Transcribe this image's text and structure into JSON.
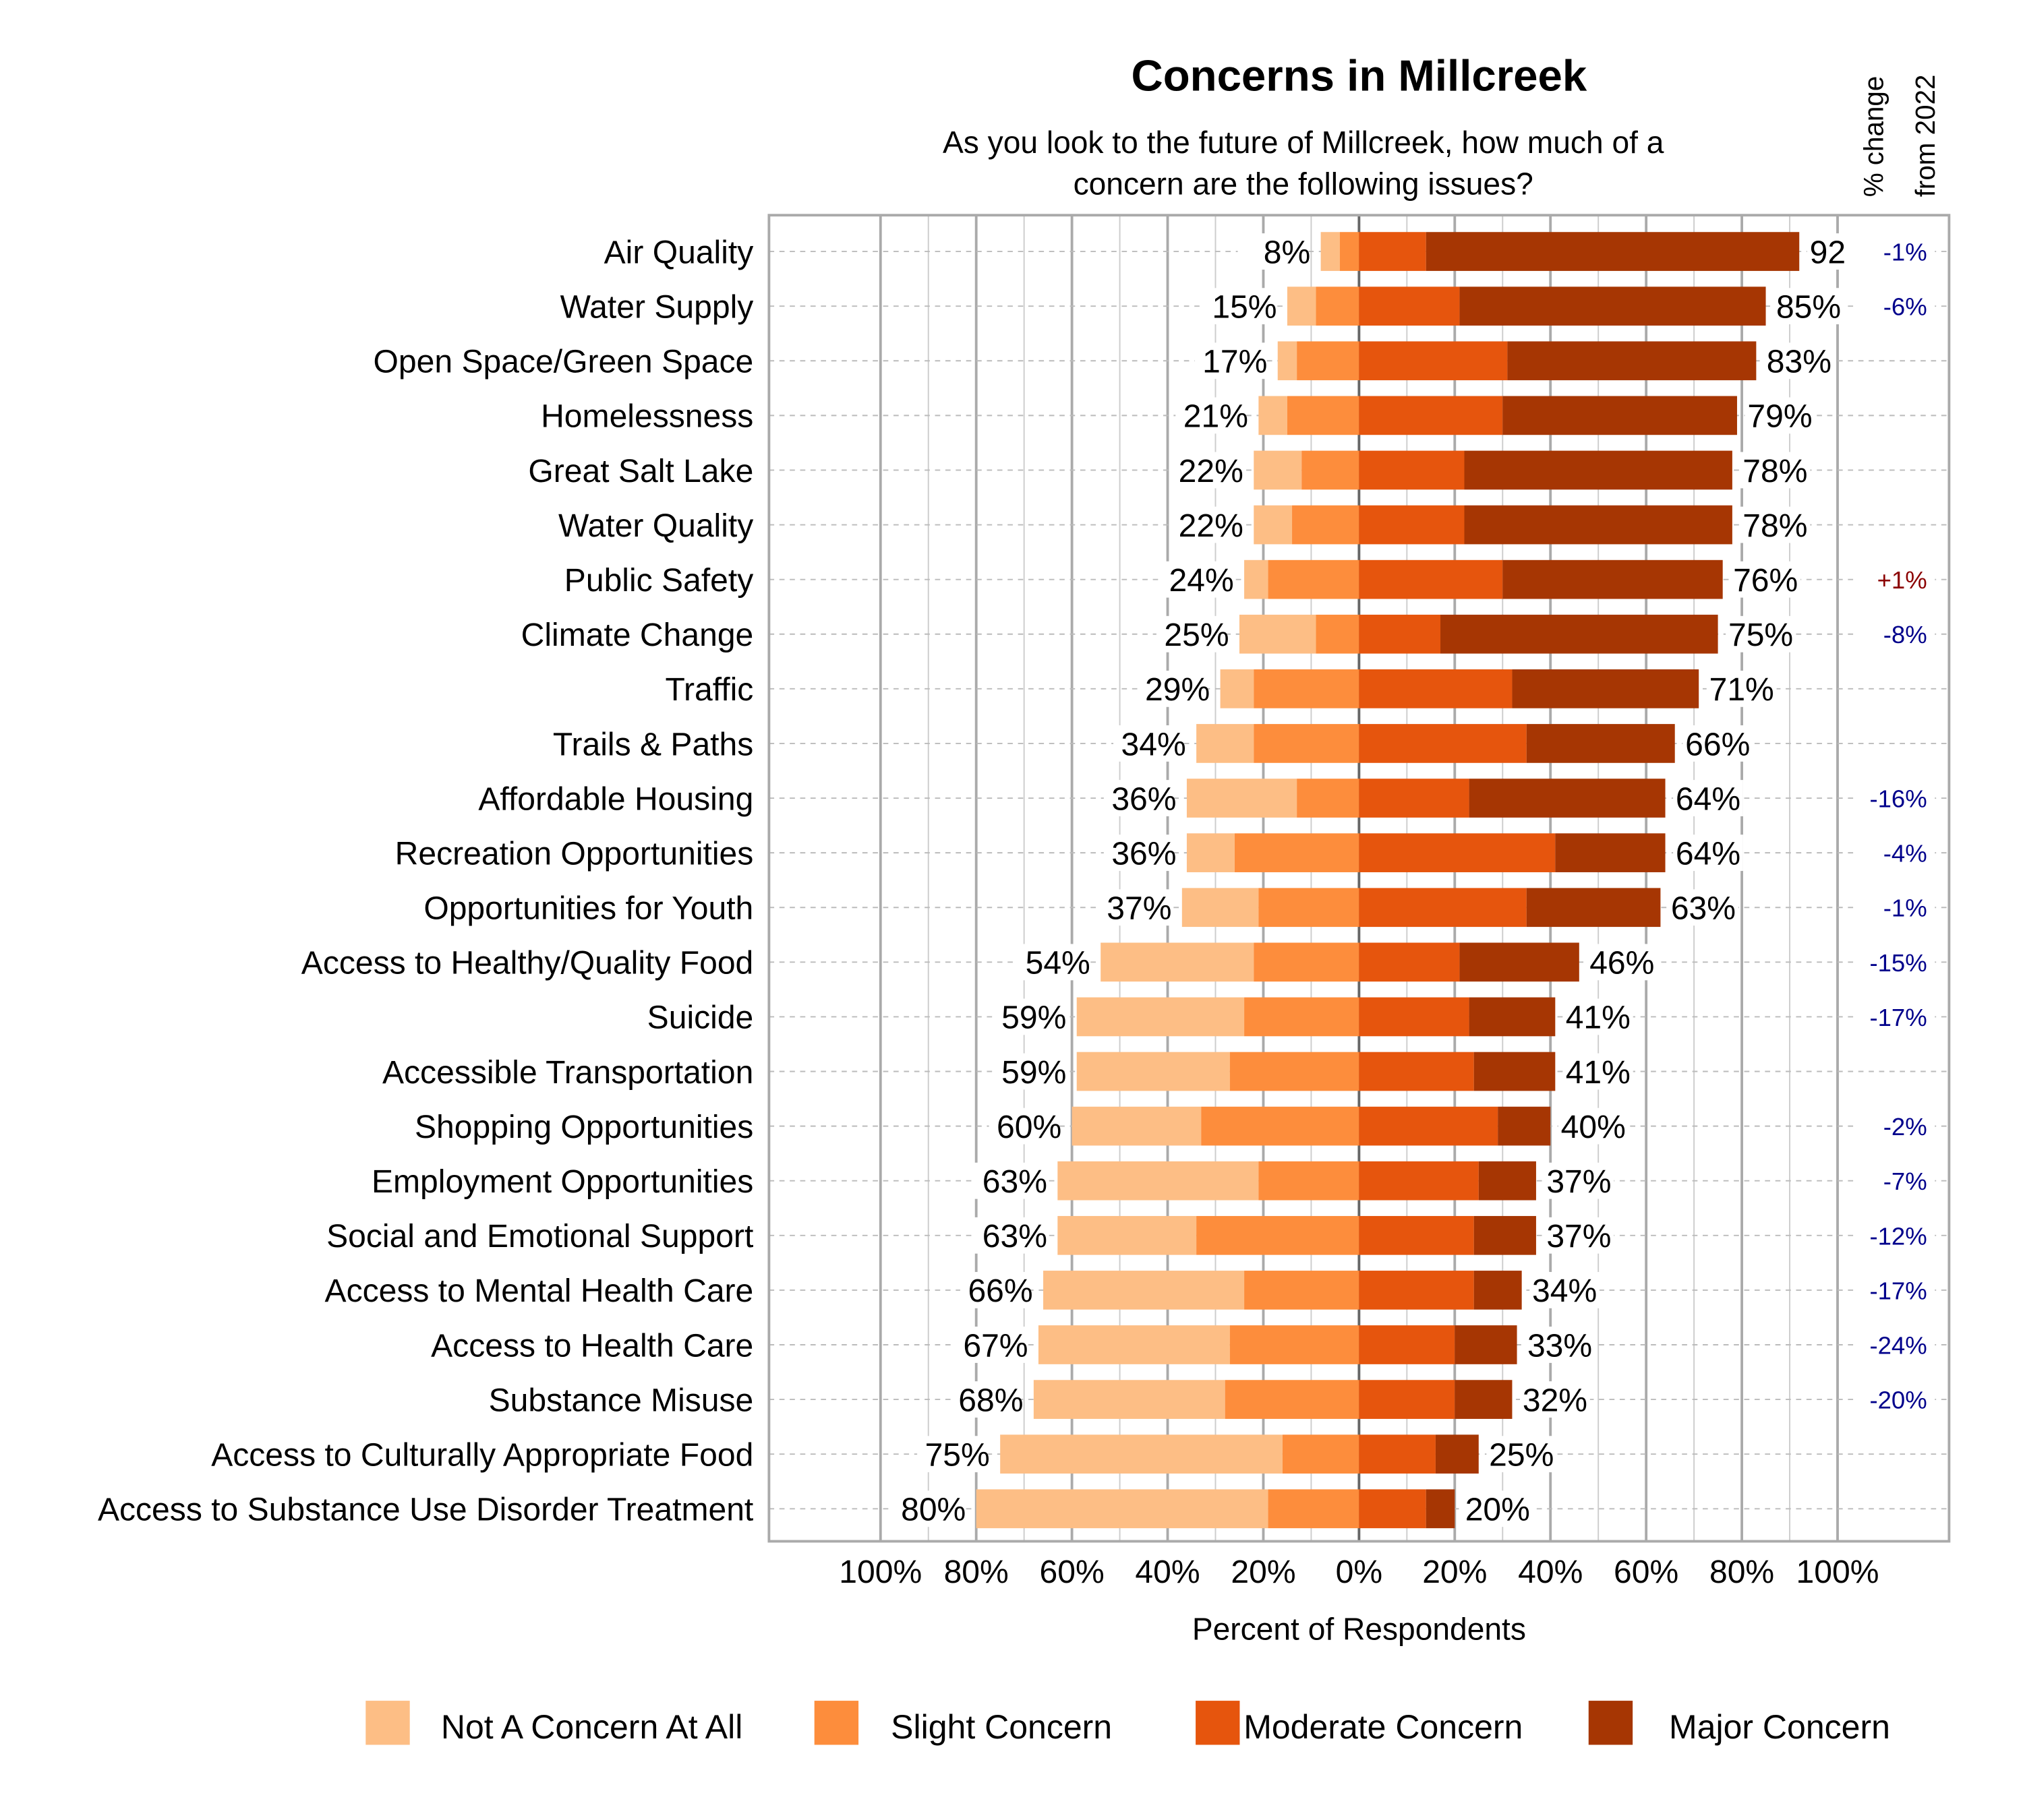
{
  "chart_data": {
    "type": "bar",
    "orientation": "horizontal-diverging-stacked",
    "title": "Concerns in Millcreek",
    "subtitle": [
      "As you look to the future of Millcreek, how much of a",
      "concern are the following issues?"
    ],
    "xlabel": "Percent of Respondents",
    "change_header": [
      "% change",
      "from 2022"
    ],
    "xlim": [
      -100,
      100
    ],
    "xticks": [
      "100%",
      "80%",
      "60%",
      "40%",
      "20%",
      "0%",
      "20%",
      "40%",
      "60%",
      "80%",
      "100%"
    ],
    "grid": true,
    "legend_position": "bottom",
    "colors": {
      "not": "#FDBE85",
      "slight": "#FD8D3C",
      "moderate": "#E6550D",
      "major": "#A63603",
      "change_negative": "#00008B",
      "change_positive": "#8B0000"
    },
    "series_names": [
      "Not A Concern At All",
      "Slight Concern",
      "Moderate Concern",
      "Major Concern"
    ],
    "categories": [
      "Air Quality",
      "Water Supply",
      "Open Space/Green Space",
      "Homelessness",
      "Great Salt Lake",
      "Water Quality",
      "Public Safety",
      "Climate Change",
      "Traffic",
      "Trails & Paths",
      "Affordable Housing",
      "Recreation Opportunities",
      "Opportunities for Youth",
      "Access to Healthy/Quality Food",
      "Suicide",
      "Accessible Transportation",
      "Shopping Opportunities",
      "Employment Opportunities",
      "Social and Emotional Support",
      "Access to Mental Health Care",
      "Access to Health Care",
      "Substance Misuse",
      "Access to Culturally Appropriate Food",
      "Access to Substance Use Disorder Treatment"
    ],
    "series": [
      {
        "name": "Not A Concern At All",
        "values": [
          4,
          6,
          4,
          6,
          10,
          8,
          5,
          16,
          7,
          12,
          23,
          10,
          16,
          32,
          35,
          32,
          27,
          42,
          29,
          42,
          40,
          40,
          59,
          61
        ]
      },
      {
        "name": "Slight Concern",
        "values": [
          4,
          9,
          13,
          15,
          12,
          14,
          19,
          9,
          22,
          22,
          13,
          26,
          21,
          22,
          24,
          27,
          33,
          21,
          34,
          24,
          27,
          28,
          16,
          19
        ]
      },
      {
        "name": "Moderate Concern",
        "values": [
          14,
          21,
          31,
          30,
          22,
          22,
          30,
          17,
          32,
          35,
          23,
          41,
          35,
          21,
          23,
          24,
          29,
          25,
          24,
          24,
          20,
          20,
          16,
          14
        ]
      },
      {
        "name": "Major Concern",
        "values": [
          78,
          64,
          52,
          49,
          56,
          56,
          46,
          58,
          39,
          31,
          41,
          23,
          28,
          25,
          18,
          17,
          11,
          12,
          13,
          10,
          13,
          12,
          9,
          6
        ]
      }
    ],
    "left_labels": [
      "8%",
      "15%",
      "17%",
      "21%",
      "22%",
      "22%",
      "24%",
      "25%",
      "29%",
      "34%",
      "36%",
      "36%",
      "37%",
      "54%",
      "59%",
      "59%",
      "60%",
      "63%",
      "63%",
      "66%",
      "67%",
      "68%",
      "75%",
      "80%"
    ],
    "right_labels": [
      "92",
      "85%",
      "83%",
      "79%",
      "78%",
      "78%",
      "76%",
      "75%",
      "71%",
      "66%",
      "64%",
      "64%",
      "63%",
      "46%",
      "41%",
      "41%",
      "40%",
      "37%",
      "37%",
      "34%",
      "33%",
      "32%",
      "25%",
      "20%"
    ],
    "change_from_2022": [
      "-1%",
      "-6%",
      "",
      "",
      "",
      "",
      "+1%",
      "-8%",
      "",
      "",
      "-16%",
      "-4%",
      "-1%",
      "-15%",
      "-17%",
      "",
      "-2%",
      "-7%",
      "-12%",
      "-17%",
      "-24%",
      "-20%",
      "",
      ""
    ]
  }
}
